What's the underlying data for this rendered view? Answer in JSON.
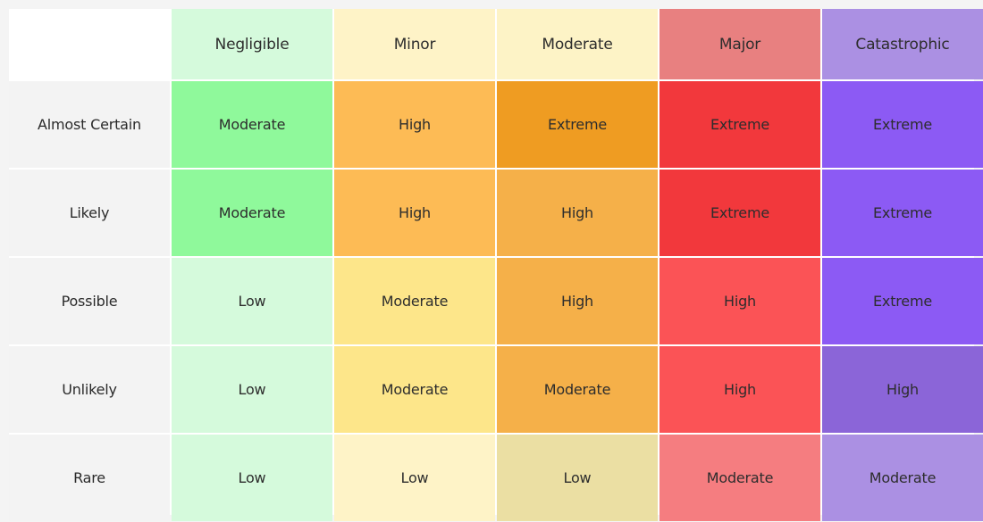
{
  "chart_data": {
    "type": "heatmap",
    "columns": [
      {
        "label": "Negligible",
        "color": "#d5fadc"
      },
      {
        "label": "Minor",
        "color": "#fef3c7"
      },
      {
        "label": "Moderate",
        "color": "#fdf3c6"
      },
      {
        "label": "Major",
        "color": "#e88080"
      },
      {
        "label": "Catastrophic",
        "color": "#ab90e3"
      }
    ],
    "rows": [
      {
        "label": "Almost Certain",
        "cells": [
          {
            "value": "Moderate",
            "color": "#8ff99b"
          },
          {
            "value": "High",
            "color": "#fdbb55"
          },
          {
            "value": "Extreme",
            "color": "#ef9c22"
          },
          {
            "value": "Extreme",
            "color": "#f2383c"
          },
          {
            "value": "Extreme",
            "color": "#8c5af4"
          }
        ]
      },
      {
        "label": "Likely",
        "cells": [
          {
            "value": "Moderate",
            "color": "#8ff99b"
          },
          {
            "value": "High",
            "color": "#fdbb55"
          },
          {
            "value": "High",
            "color": "#f5b049"
          },
          {
            "value": "Extreme",
            "color": "#f2383c"
          },
          {
            "value": "Extreme",
            "color": "#8c5af4"
          }
        ]
      },
      {
        "label": "Possible",
        "cells": [
          {
            "value": "Low",
            "color": "#d5fadc"
          },
          {
            "value": "Moderate",
            "color": "#fde68a"
          },
          {
            "value": "High",
            "color": "#f5b049"
          },
          {
            "value": "High",
            "color": "#fb5356"
          },
          {
            "value": "Extreme",
            "color": "#8c5af4"
          }
        ]
      },
      {
        "label": "Unlikely",
        "cells": [
          {
            "value": "Low",
            "color": "#d5fadc"
          },
          {
            "value": "Moderate",
            "color": "#fde68a"
          },
          {
            "value": "Moderate",
            "color": "#f5b049"
          },
          {
            "value": "High",
            "color": "#fb5356"
          },
          {
            "value": "High",
            "color": "#8b65d8"
          }
        ]
      },
      {
        "label": "Rare",
        "cells": [
          {
            "value": "Low",
            "color": "#d5fadc"
          },
          {
            "value": "Low",
            "color": "#fef3c7"
          },
          {
            "value": "Low",
            "color": "#ebdfa3"
          },
          {
            "value": "Moderate",
            "color": "#f57d80"
          },
          {
            "value": "Moderate",
            "color": "#ab90e3"
          }
        ]
      }
    ]
  }
}
